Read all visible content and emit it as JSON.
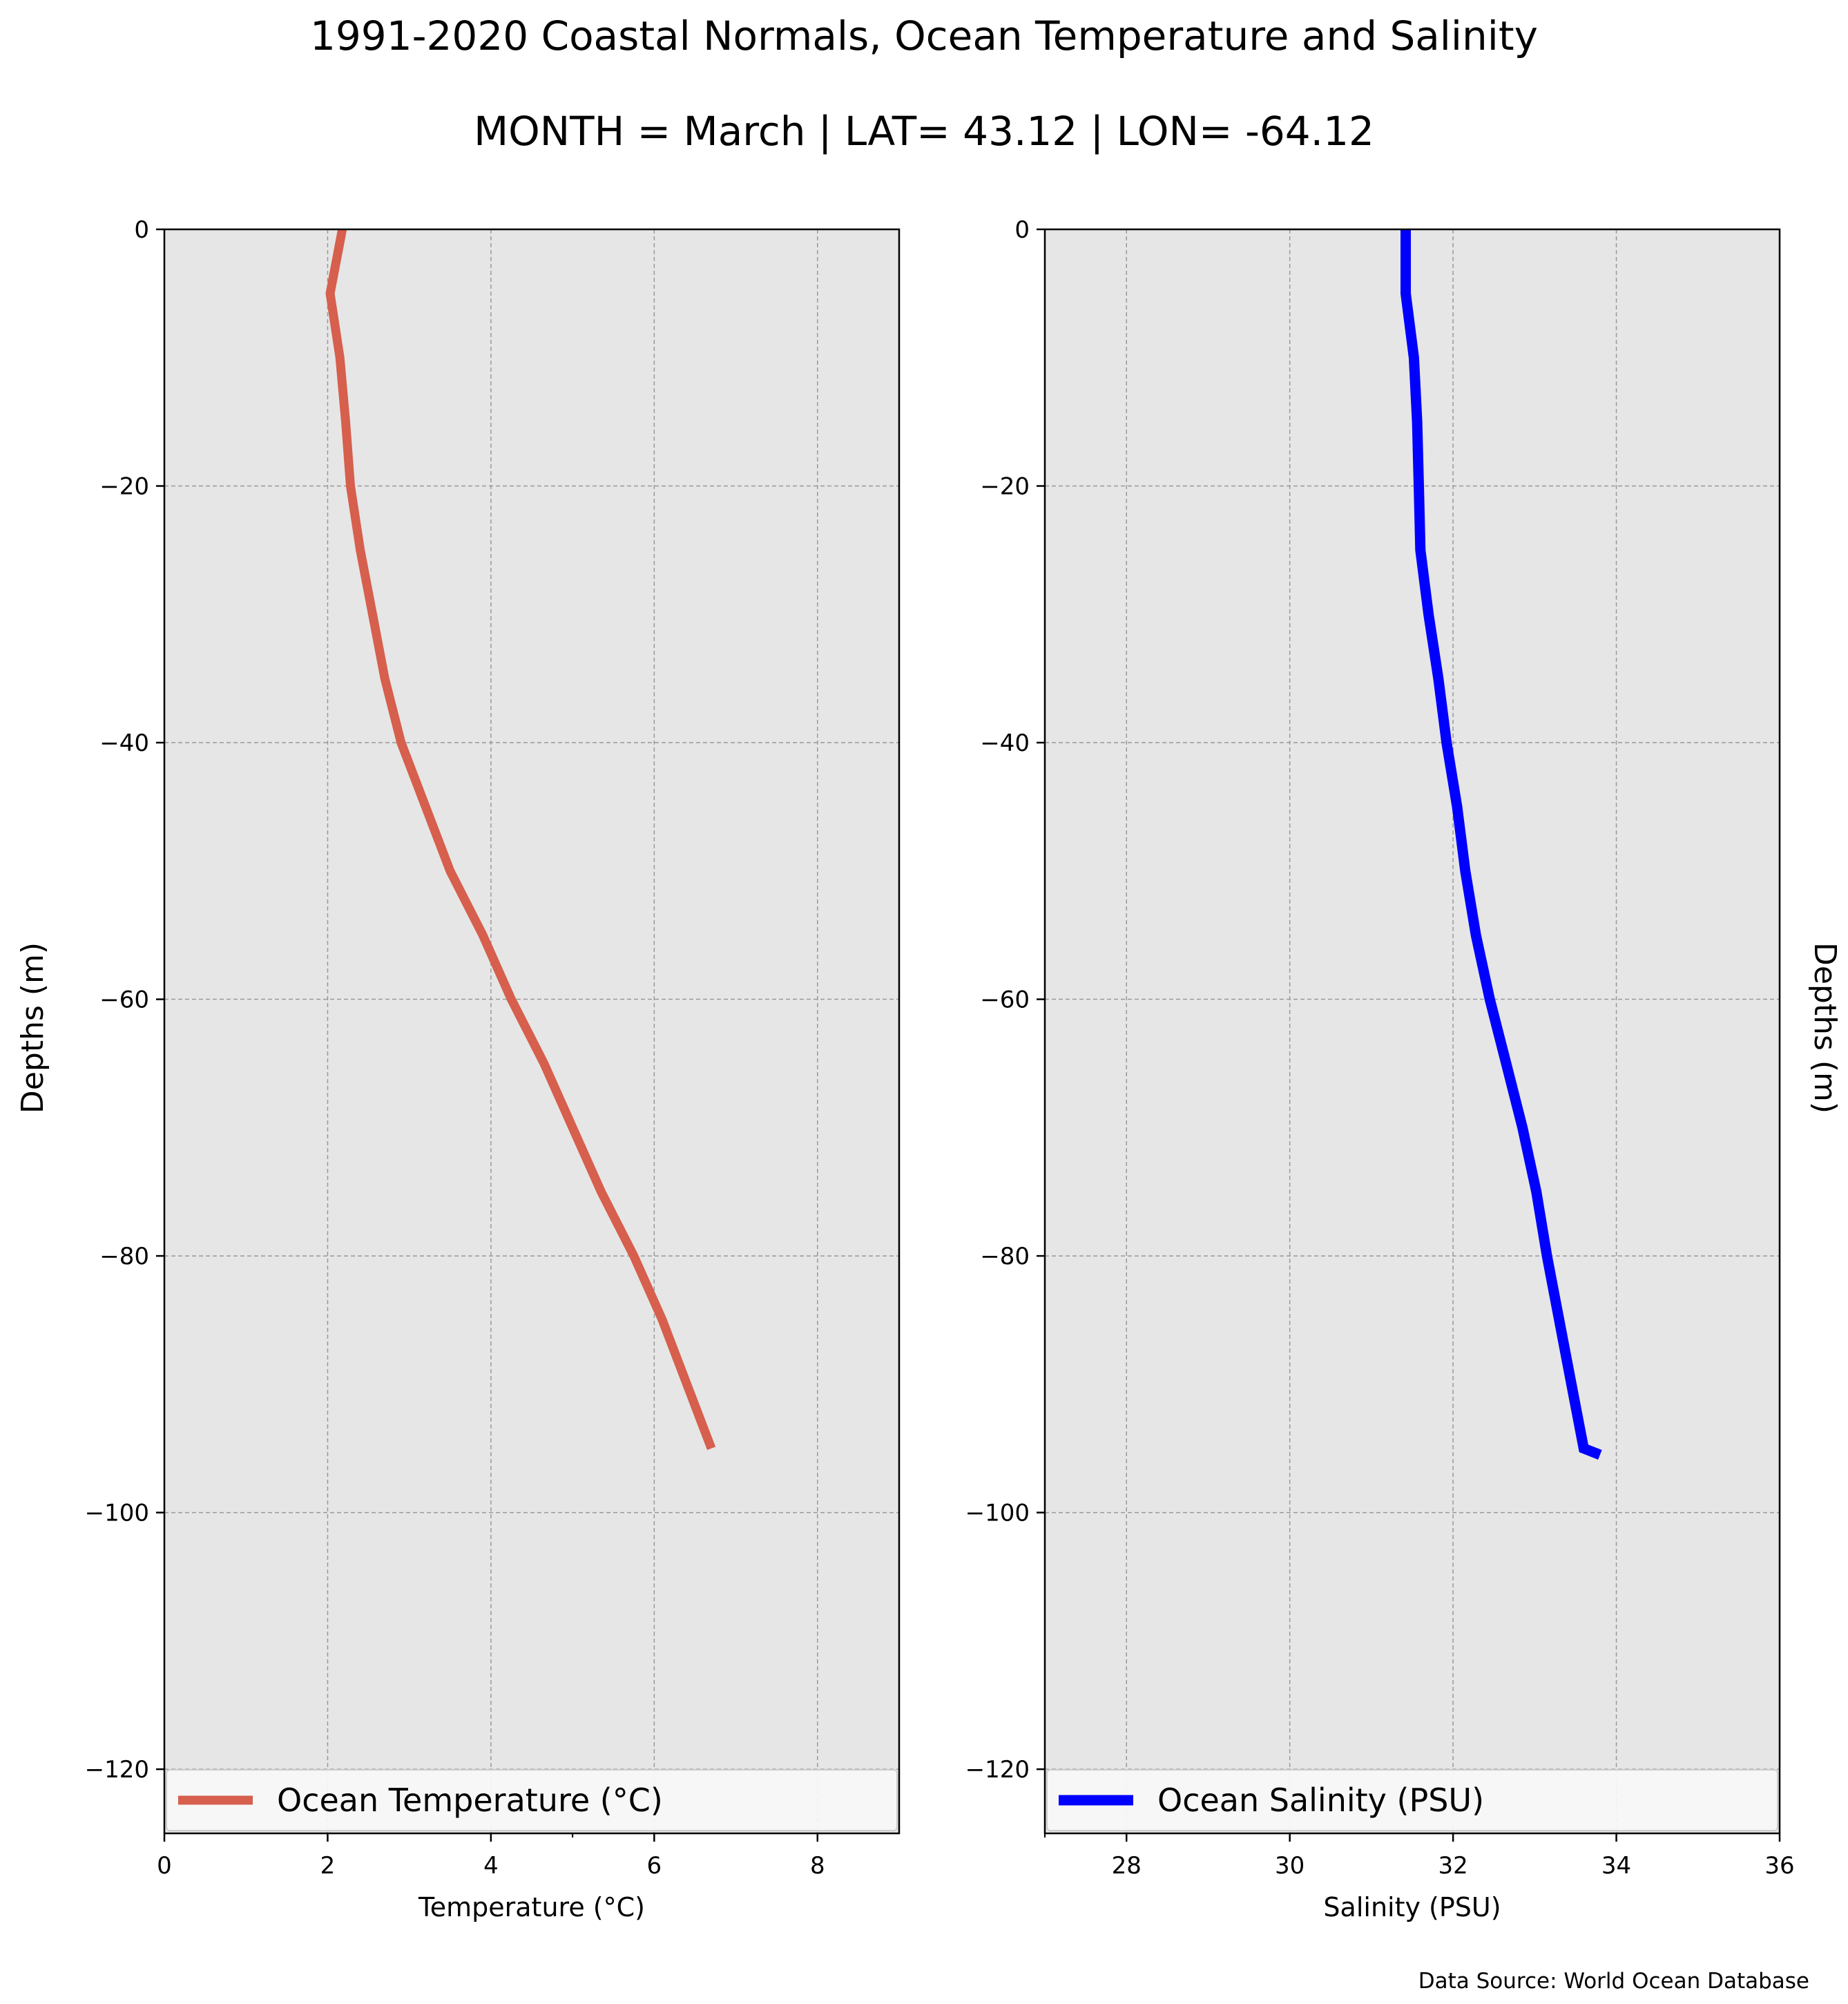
{
  "title": "1991-2020 Coastal Normals, Ocean Temperature and Salinity",
  "subtitle": "MONTH = March | LAT= 43.12 | LON= -64.12",
  "source": "Data Source: World Ocean Database",
  "colors": {
    "panel_background": "#e6e6e6",
    "grid": "#999999",
    "temperature_line": "#d65f4d",
    "salinity_line": "#0000ff"
  },
  "chart_data": [
    {
      "type": "line",
      "title": "",
      "xlabel": "Temperature (°C)",
      "ylabel": "Depths (m)",
      "xlim": [
        0,
        9
      ],
      "ylim": [
        -125,
        0
      ],
      "xticks": [
        0,
        2,
        4,
        6,
        8
      ],
      "xticks_minor": [
        5
      ],
      "yticks": [
        0,
        -20,
        -40,
        -60,
        -80,
        -100,
        -120
      ],
      "grid": true,
      "ylabel_side": "left",
      "legend": "bottom",
      "series": [
        {
          "name": "Ocean Temperature (°C)",
          "x": [
            2.18,
            2.03,
            2.15,
            2.22,
            2.28,
            2.4,
            2.55,
            2.7,
            2.9,
            3.2,
            3.5,
            3.9,
            4.25,
            4.65,
            5.0,
            5.35,
            5.75,
            6.1,
            6.4,
            6.7
          ],
          "y": [
            0,
            -5,
            -10,
            -15,
            -20,
            -25,
            -30,
            -35,
            -40,
            -45,
            -50,
            -55,
            -60,
            -65,
            -70,
            -75,
            -80,
            -85,
            -90,
            -95
          ]
        }
      ]
    },
    {
      "type": "line",
      "title": "",
      "xlabel": "Salinity (PSU)",
      "ylabel": "Depths (m)",
      "xlim": [
        27,
        36
      ],
      "ylim": [
        -125,
        0
      ],
      "xticks": [
        28,
        30,
        32,
        34,
        36
      ],
      "xticks_minor": [
        27
      ],
      "yticks": [
        0,
        -20,
        -40,
        -60,
        -80,
        -100,
        -120
      ],
      "grid": true,
      "ylabel_side": "right",
      "legend": "bottom",
      "series": [
        {
          "name": "Ocean Salinity (PSU)",
          "x": [
            31.42,
            31.42,
            31.52,
            31.56,
            31.58,
            31.6,
            31.7,
            31.82,
            31.92,
            32.05,
            32.15,
            32.28,
            32.45,
            32.65,
            32.85,
            33.02,
            33.15,
            33.3,
            33.45,
            33.6,
            33.8
          ],
          "y": [
            0,
            -5,
            -10,
            -15,
            -20,
            -25,
            -30,
            -35,
            -40,
            -45,
            -50,
            -55,
            -60,
            -65,
            -70,
            -75,
            -80,
            -85,
            -90,
            -95,
            -95.5
          ]
        }
      ]
    }
  ]
}
